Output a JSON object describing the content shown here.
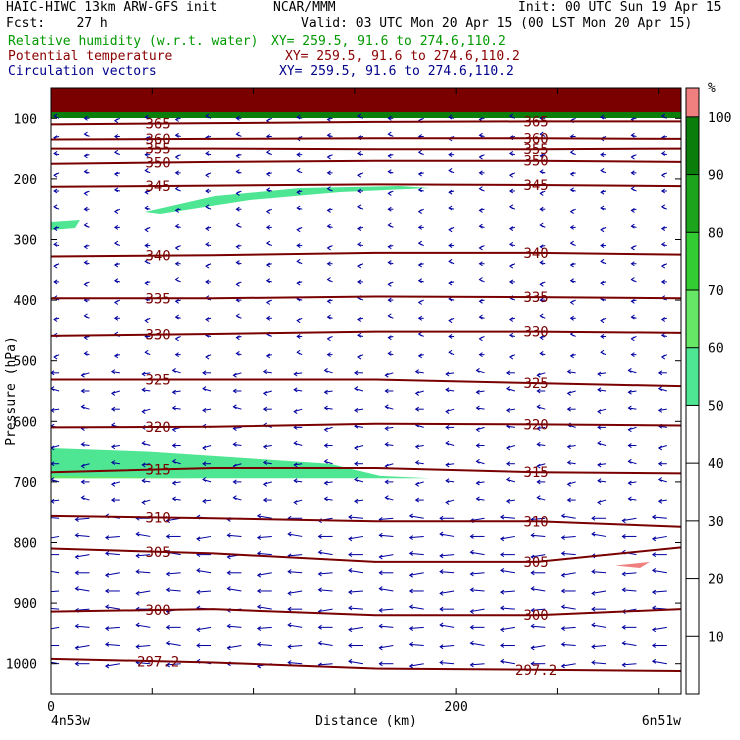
{
  "header": {
    "line1_left": "HAIC-HIWC 13km ARW-GFS init",
    "line1_mid": "NCAR/MMM",
    "line1_right": "Init: 00 UTC Sun 19 Apr 15",
    "line2_left": "Fcst:    27 h",
    "line2_right": "Valid: 03 UTC Mon 20 Apr 15 (00 LST Mon 20 Apr 15)",
    "field1_name": "Relative humidity (w.r.t. water)",
    "field1_xy": "XY= 259.5, 91.6 to 274.6,110.2",
    "field2_name": "Potential temperature",
    "field2_xy": "XY= 259.5, 91.6 to 274.6,110.2",
    "field3_name": "Circulation vectors",
    "field3_xy": "XY= 259.5, 91.6 to 274.6,110.2"
  },
  "colors": {
    "rh_field": "#009900",
    "theta_field": "#8b0000",
    "vector_field": "#00008b",
    "theta_line": "#7a0000",
    "vector": "#0000a0"
  },
  "chart_data": {
    "type": "heatmap",
    "ylabel": "Pressure (hPa)",
    "xlabel": "Distance (km)",
    "x_ticks": [
      "0",
      "200"
    ],
    "x_tick_values": [
      0,
      200
    ],
    "xlim": [
      0,
      311
    ],
    "x_left_label": "4n53w",
    "x_right_label": "6n51w",
    "y_ticks": [
      "100",
      "200",
      "300",
      "400",
      "500",
      "600",
      "700",
      "800",
      "900",
      "1000"
    ],
    "y_tick_values": [
      100,
      200,
      300,
      400,
      500,
      600,
      700,
      800,
      900,
      1000
    ],
    "ylim": [
      1050,
      50
    ],
    "y_scale": "linear (inverted)",
    "colorbar": {
      "unit": "%",
      "ticks": [
        "10",
        "20",
        "30",
        "40",
        "50",
        "60",
        "70",
        "80",
        "90",
        "100"
      ],
      "levels": [
        {
          "from": 50,
          "to": 60,
          "color": "#4ee692"
        },
        {
          "from": 60,
          "to": 70,
          "color": "#66e866"
        },
        {
          "from": 70,
          "to": 80,
          "color": "#33cc33"
        },
        {
          "from": 80,
          "to": 90,
          "color": "#1ca41c"
        },
        {
          "from": 90,
          "to": 100,
          "color": "#0b7d0b"
        },
        {
          "from": 100,
          "to": 105,
          "color": "#f08080"
        }
      ]
    },
    "isentropes": [
      {
        "theta": "365",
        "pressures": [
          110,
          108,
          106,
          105,
          105
        ]
      },
      {
        "theta": "360",
        "pressures": [
          135,
          134,
          133,
          133,
          134
        ]
      },
      {
        "theta": "355",
        "pressures": [
          150,
          150,
          151,
          151,
          150
        ]
      },
      {
        "theta": "350",
        "pressures": [
          175,
          172,
          170,
          170,
          172
        ]
      },
      {
        "theta": "345",
        "pressures": [
          213,
          211,
          209,
          210,
          212
        ]
      },
      {
        "theta": "340",
        "pressures": [
          328,
          326,
          322,
          322,
          325
        ]
      },
      {
        "theta": "335",
        "pressures": [
          397,
          397,
          394,
          395,
          397
        ]
      },
      {
        "theta": "330",
        "pressures": [
          459,
          456,
          452,
          452,
          454
        ]
      },
      {
        "theta": "325",
        "pressures": [
          531,
          531,
          531,
          537,
          542
        ]
      },
      {
        "theta": "320",
        "pressures": [
          610,
          609,
          604,
          605,
          607
        ]
      },
      {
        "theta": "315",
        "pressures": [
          684,
          677,
          677,
          684,
          686
        ]
      },
      {
        "theta": "310",
        "pressures": [
          756,
          760,
          765,
          765,
          774
        ]
      },
      {
        "theta": "305",
        "pressures": [
          810,
          818,
          832,
          832,
          808
        ]
      },
      {
        "theta": "300",
        "pressures": [
          914,
          910,
          920,
          920,
          910
        ]
      },
      {
        "theta": "297.2",
        "pressures": [
          992,
          998,
          1008,
          1010,
          1012
        ]
      }
    ],
    "isentrope_x": [
      0,
      80,
      160,
      240,
      311
    ]
  }
}
